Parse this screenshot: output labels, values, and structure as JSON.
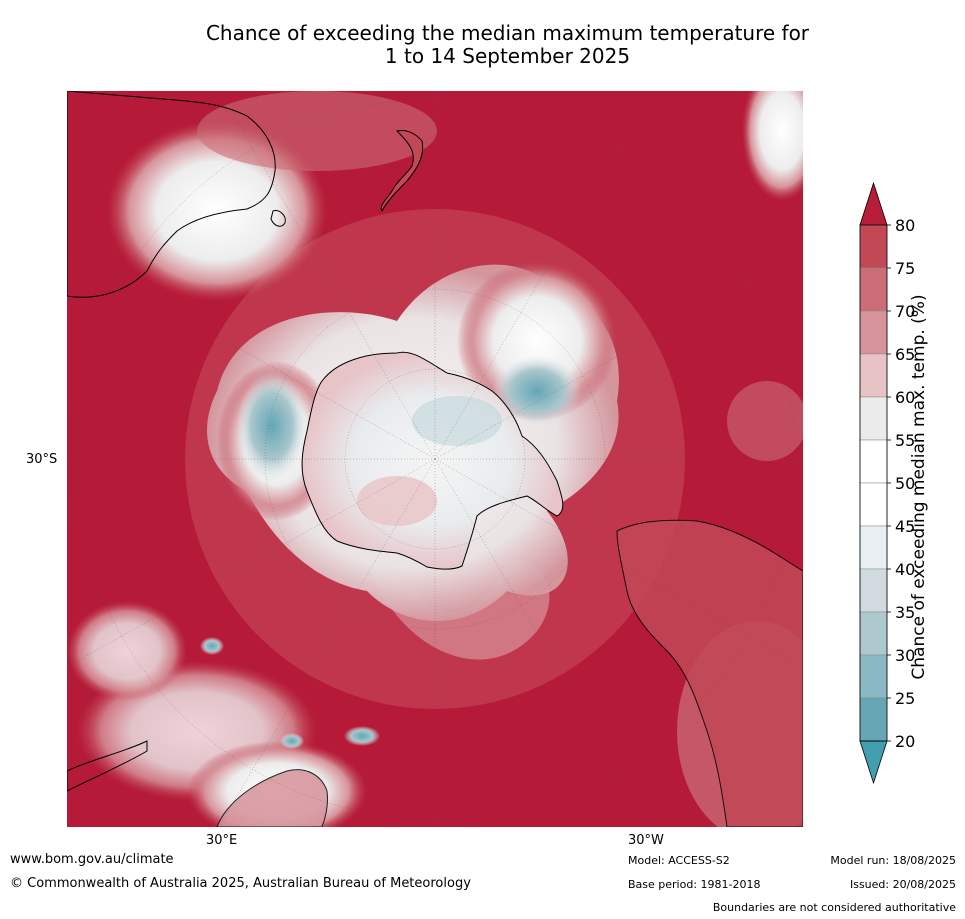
{
  "title": {
    "line1": "Chance of exceeding the median maximum temperature for",
    "line2": "1 to 14 September 2025"
  },
  "axis_labels": {
    "left": "30°S",
    "bottom_left": "30°E",
    "bottom_right": "30°W"
  },
  "colorbar": {
    "label": "Chance of exceeding median max. temp. (%)",
    "ticks": [
      "80",
      "75",
      "70",
      "65",
      "60",
      "55",
      "50",
      "45",
      "40",
      "35",
      "30",
      "25",
      "20"
    ],
    "colors": [
      "#b71c38",
      "#c24856",
      "#cb6c77",
      "#d7939b",
      "#e8c3c6",
      "#ebebeb",
      "#ffffff",
      "#ffffff",
      "#e8eef1",
      "#d1dade",
      "#aec9ce",
      "#8ab9c3",
      "#66a6b5",
      "#429daf"
    ],
    "extend_both": true
  },
  "map": {
    "projection": "south-polar",
    "ocean_color": "#b51b38",
    "land_outline_color": "#000000"
  },
  "footer": {
    "website": "www.bom.gov.au/climate",
    "copyright": "© Commonwealth of Australia 2025, Australian Bureau of Meteorology",
    "model": "Model: ACCESS-S2",
    "base_period": "Base period: 1981-2018",
    "model_run": "Model run: 18/08/2025",
    "issued": "Issued: 20/08/2025",
    "disclaimer": "Boundaries are not considered authoritative"
  }
}
